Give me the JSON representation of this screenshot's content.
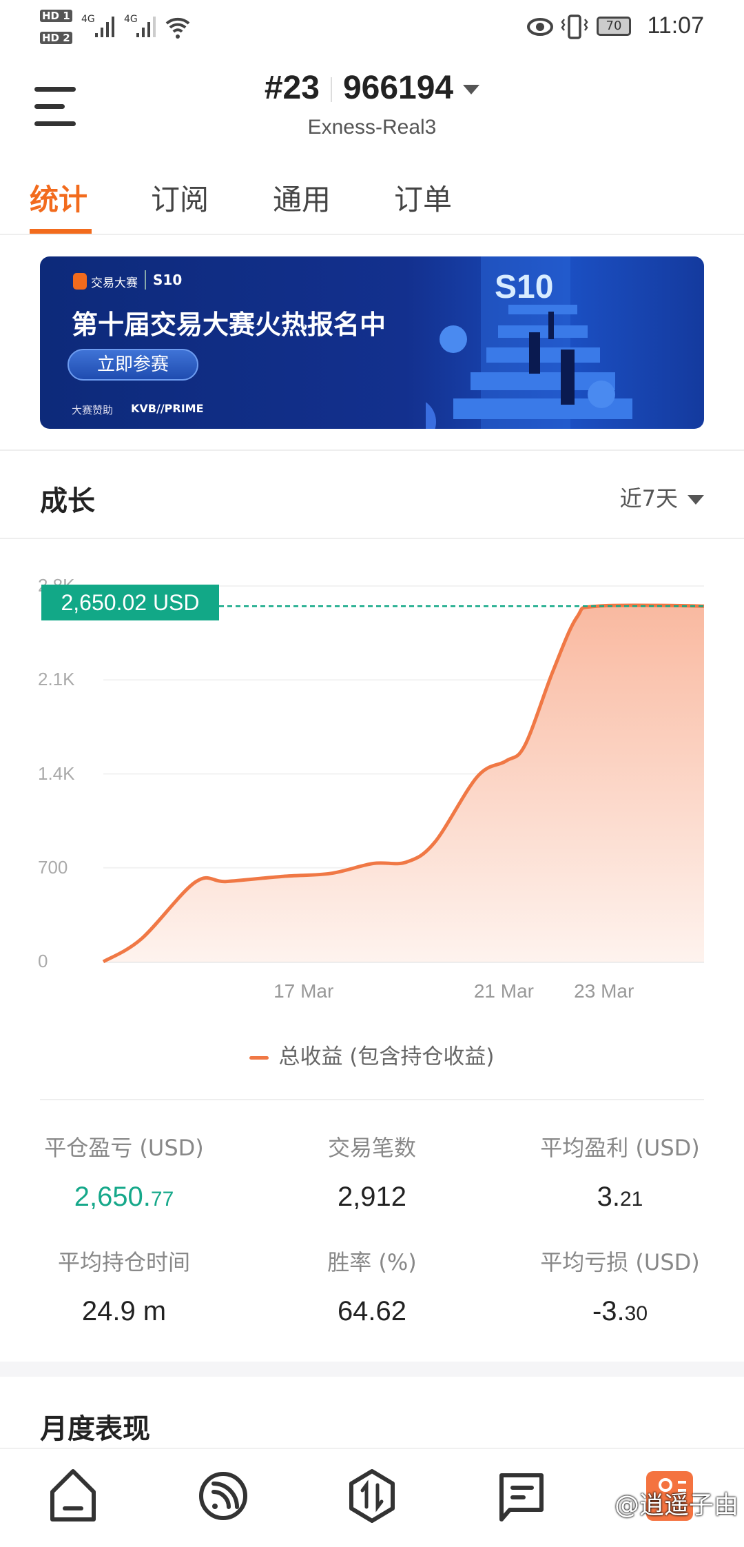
{
  "status_bar": {
    "sim1": "HD 1",
    "sim2": "HD 2",
    "network1": "4G",
    "network2": "4G",
    "battery": "70",
    "time": "11:07"
  },
  "header": {
    "rank": "#23",
    "account": "966194",
    "server": "Exness-Real3"
  },
  "tabs": [
    {
      "label": "统计",
      "active": true
    },
    {
      "label": "订阅"
    },
    {
      "label": "通用"
    },
    {
      "label": "订单"
    }
  ],
  "banner": {
    "brand": "交易大赛",
    "season": "S10",
    "headline": "第十届交易大赛火热报名中",
    "cta": "立即参赛",
    "sponsor_label": "大赛赞助",
    "sponsor": "KVB//PRIME",
    "graphic_text": "S10"
  },
  "growth": {
    "title": "成长",
    "range": "近7天",
    "current_label": "2,650.02 USD",
    "legend": "总收益 (包含持仓收益)"
  },
  "chart_data": {
    "type": "area",
    "x_unit": "day of March",
    "x": [
      13,
      13.76,
      14.84,
      15.46,
      16.59,
      17.54,
      18.39,
      19.05,
      19.62,
      20.47,
      21.04,
      21.42,
      21.98,
      22.46,
      22.88,
      25
    ],
    "values": [
      0,
      170,
      594,
      598,
      636,
      658,
      732,
      742,
      890,
      1379,
      1495,
      1612,
      2164,
      2567,
      2650.02,
      2650.02
    ],
    "xlim": [
      13,
      25
    ],
    "ylim": [
      0,
      2800
    ],
    "y_ticks": [
      "0",
      "700",
      "1.4K",
      "2.1K",
      "2.8K"
    ],
    "y_tick_values": [
      0,
      700,
      1400,
      2100,
      2800
    ],
    "x_ticks": [
      "17 Mar",
      "21 Mar",
      "23 Mar"
    ],
    "x_tick_values": [
      17,
      21,
      23
    ],
    "grid": true,
    "line_color": "#f07845",
    "marker_color": "#12a887",
    "legend_position": "bottom"
  },
  "stats": [
    {
      "label": "平仓盈亏 (USD)",
      "int": "2,650.",
      "dec": "77",
      "positive": true
    },
    {
      "label": "交易笔数",
      "int": "2,912",
      "dec": ""
    },
    {
      "label": "平均盈利 (USD)",
      "int": "3.",
      "dec": "21"
    },
    {
      "label": "平均持仓时间",
      "int": "24.9 m",
      "dec": ""
    },
    {
      "label": "胜率 (%)",
      "int": "64.62",
      "dec": ""
    },
    {
      "label": "平均亏损 (USD)",
      "int": "-3.",
      "dec": "30"
    }
  ],
  "monthly": {
    "title": "月度表现"
  },
  "nav": [
    "home-icon",
    "feed-icon",
    "trade-icon",
    "messages-icon",
    "profile-icon"
  ],
  "watermark": "@逍遥子由"
}
